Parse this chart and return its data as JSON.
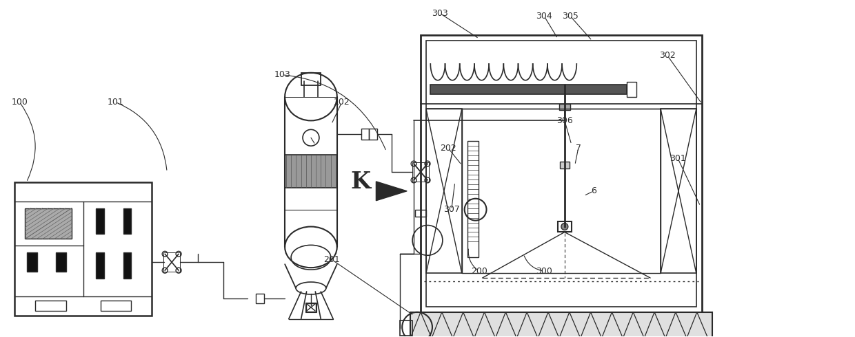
{
  "fig_width": 12.4,
  "fig_height": 4.9,
  "dpi": 100,
  "bg_color": "#ffffff",
  "line_color": "#2a2a2a"
}
